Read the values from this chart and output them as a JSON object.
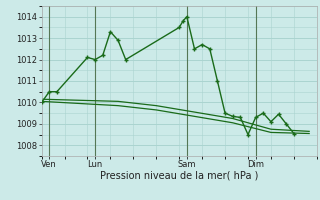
{
  "background_color": "#cceae8",
  "grid_color": "#aad4d0",
  "line_color": "#1a6b1a",
  "xlabel": "Pression niveau de la mer( hPa )",
  "ylim": [
    1007.5,
    1014.5
  ],
  "yticks": [
    1008,
    1009,
    1010,
    1011,
    1012,
    1013,
    1014
  ],
  "xlim": [
    0,
    72
  ],
  "day_labels": [
    "Ven",
    "Lun",
    "Sam",
    "Dim"
  ],
  "day_positions": [
    2,
    14,
    38,
    56
  ],
  "vline_positions": [
    2,
    14,
    38,
    56
  ],
  "main_x": [
    0,
    2,
    4,
    12,
    14,
    16,
    18,
    20,
    22,
    36,
    37,
    38,
    40,
    42,
    44,
    46,
    48,
    50,
    52,
    54,
    56,
    58,
    60,
    62,
    64,
    66
  ],
  "main_y": [
    1010.0,
    1010.5,
    1010.5,
    1012.1,
    1012.0,
    1012.2,
    1013.3,
    1012.9,
    1012.0,
    1013.5,
    1013.8,
    1014.0,
    1012.5,
    1012.7,
    1012.5,
    1011.0,
    1009.5,
    1009.35,
    1009.3,
    1008.5,
    1009.3,
    1009.5,
    1009.1,
    1009.45,
    1009.0,
    1008.55
  ],
  "trend1_x": [
    0,
    10,
    20,
    30,
    40,
    50,
    60,
    70
  ],
  "trend1_y": [
    1010.15,
    1010.1,
    1010.05,
    1009.85,
    1009.55,
    1009.25,
    1008.75,
    1008.65
  ],
  "trend2_x": [
    0,
    10,
    20,
    30,
    40,
    50,
    60,
    70
  ],
  "trend2_y": [
    1010.05,
    1009.95,
    1009.85,
    1009.65,
    1009.35,
    1009.05,
    1008.6,
    1008.55
  ]
}
